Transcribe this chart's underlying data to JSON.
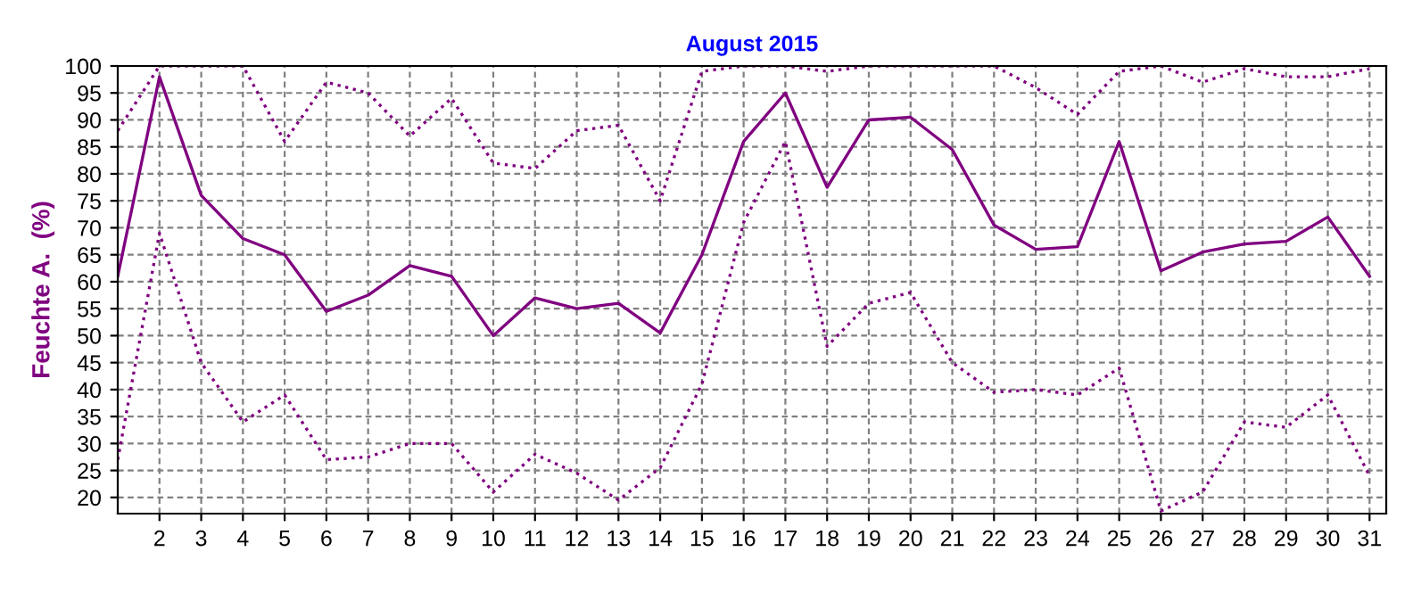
{
  "chart_data": {
    "type": "line",
    "title": "August 2015",
    "ylabel": "Feuchte A.  (%)",
    "x": [
      1,
      2,
      3,
      4,
      5,
      6,
      7,
      8,
      9,
      10,
      11,
      12,
      13,
      14,
      15,
      16,
      17,
      18,
      19,
      20,
      21,
      22,
      23,
      24,
      25,
      26,
      27,
      28,
      29,
      30,
      31
    ],
    "xlim": [
      1,
      31.4
    ],
    "xticks": [
      2,
      3,
      4,
      5,
      6,
      7,
      8,
      9,
      10,
      11,
      12,
      13,
      14,
      15,
      16,
      17,
      18,
      19,
      20,
      21,
      22,
      23,
      24,
      25,
      26,
      27,
      28,
      29,
      30,
      31
    ],
    "ylim": [
      17,
      100
    ],
    "yticks": [
      20,
      25,
      30,
      35,
      40,
      45,
      50,
      55,
      60,
      65,
      70,
      75,
      80,
      85,
      90,
      95,
      100
    ],
    "grid": true,
    "legend": false,
    "series": [
      {
        "color": "#800080",
        "line_style": "dotted",
        "values": [
          88,
          100,
          100,
          100,
          86,
          97,
          95,
          87,
          94,
          82,
          81,
          88,
          89,
          75,
          99,
          100,
          100,
          99,
          100,
          100,
          100,
          100,
          96,
          91,
          99,
          100,
          97,
          99.5,
          98,
          98,
          99.5
        ]
      },
      {
        "color": "#800080",
        "line_style": "solid",
        "values": [
          61,
          98,
          76,
          68,
          65,
          54.5,
          57.5,
          63,
          61,
          50,
          57,
          55,
          56,
          50.5,
          65,
          86,
          95,
          77.5,
          90,
          90.5,
          84.5,
          70.5,
          66,
          66.5,
          86,
          62,
          65.5,
          67,
          67.5,
          72,
          61
        ]
      },
      {
        "color": "#800080",
        "line_style": "dotted",
        "values": [
          27,
          69,
          45,
          34,
          39,
          27,
          27.5,
          30,
          30,
          21,
          28,
          24.5,
          19.5,
          25.5,
          41,
          71,
          86,
          48,
          56,
          58,
          45,
          39.5,
          40,
          39,
          44,
          17.5,
          21,
          34,
          33,
          39,
          24
        ]
      }
    ]
  }
}
